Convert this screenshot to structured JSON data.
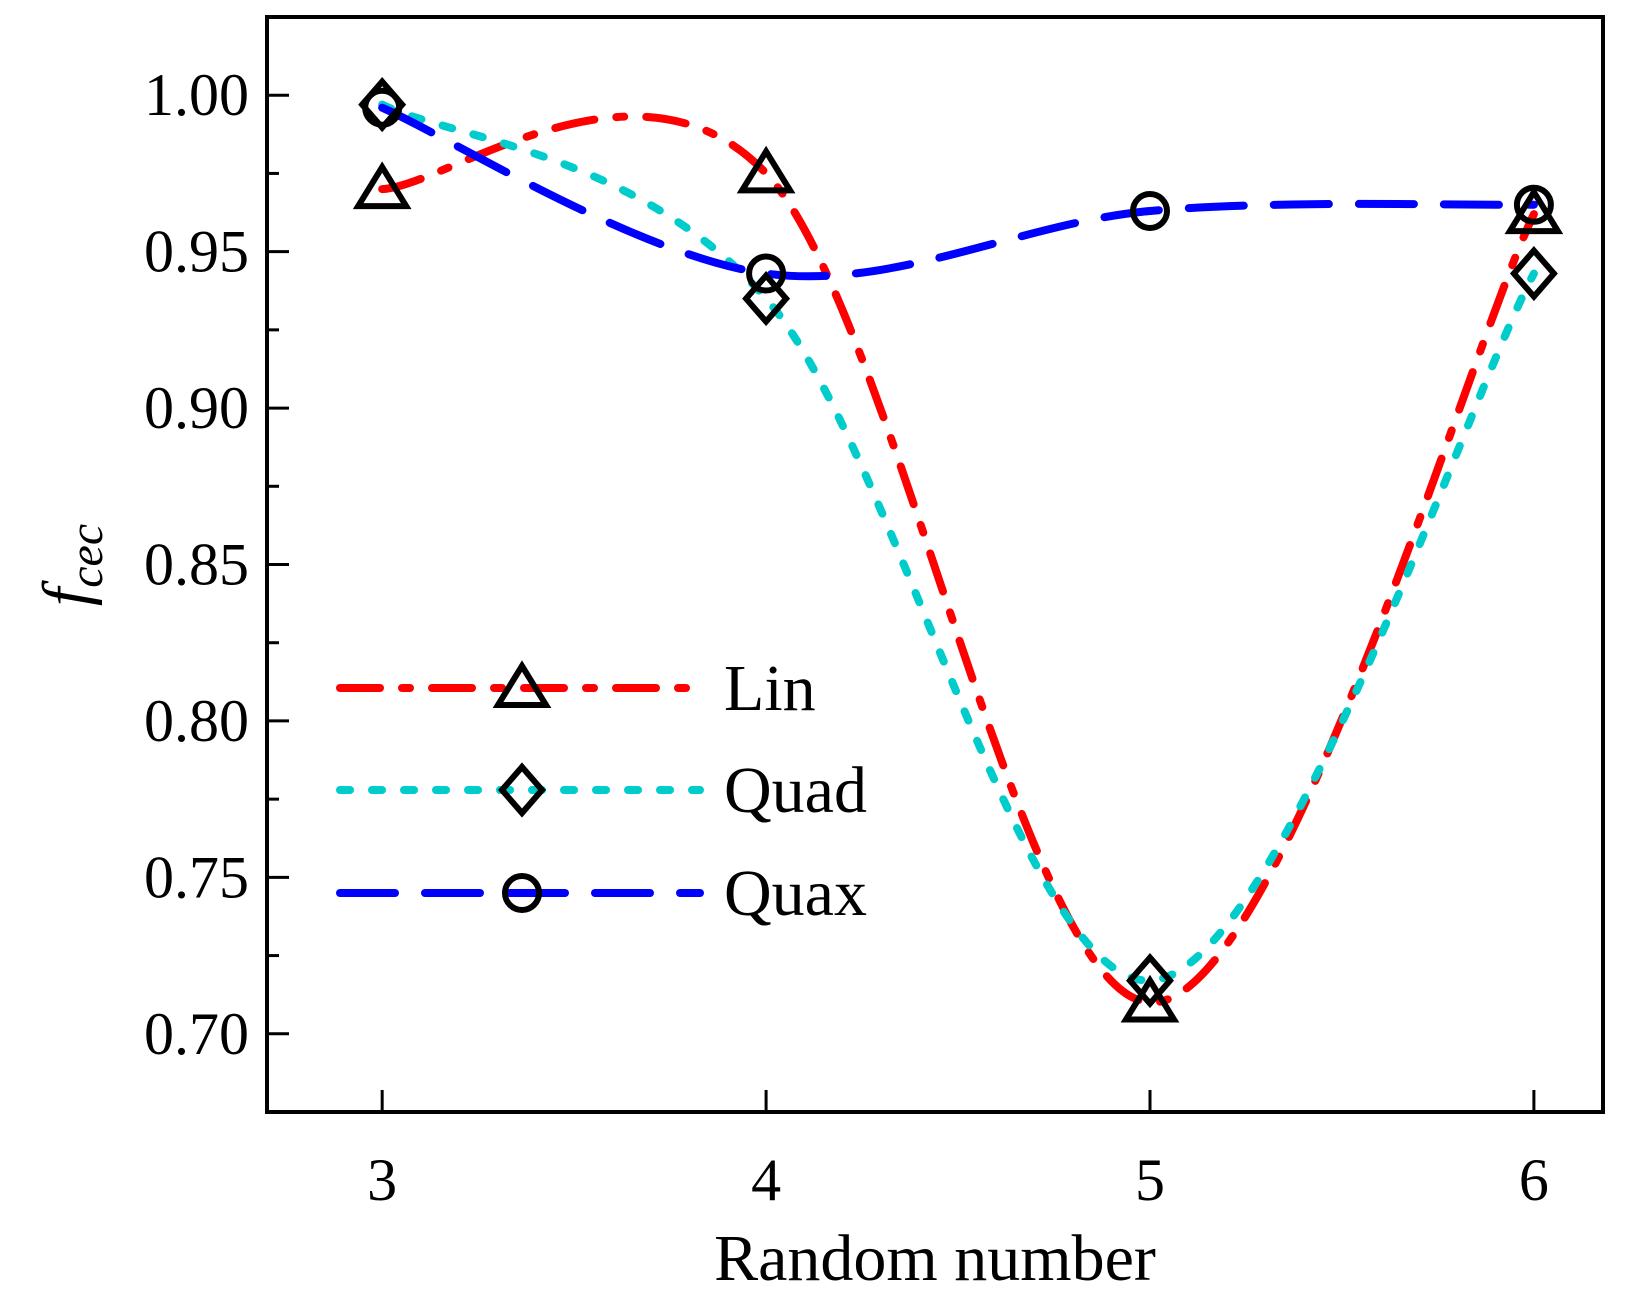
{
  "chart_data": {
    "type": "line",
    "xlabel": "Random number",
    "ylabel_main": "f",
    "ylabel_sub": "cec",
    "x": [
      3,
      4,
      5,
      6
    ],
    "xlim": [
      2.7,
      6.18
    ],
    "ylim": [
      0.675,
      1.025
    ],
    "xticks": [
      3,
      4,
      5,
      6
    ],
    "xtick_labels": [
      "3",
      "4",
      "5",
      "6"
    ],
    "yticks": [
      0.7,
      0.75,
      0.8,
      0.85,
      0.9,
      0.95,
      1.0
    ],
    "ytick_labels": [
      "0.70",
      "0.75",
      "0.80",
      "0.85",
      "0.90",
      "0.95",
      "1.00"
    ],
    "legend_position": "center-left",
    "series": [
      {
        "name": "Lin",
        "color": "#ff0000",
        "marker": "triangle",
        "dash": "dashdot",
        "values": [
          0.97,
          0.975,
          0.71,
          0.962
        ]
      },
      {
        "name": "Quad",
        "color": "#00cccc",
        "marker": "diamond",
        "dash": "dotted",
        "values": [
          0.997,
          0.935,
          0.717,
          0.943
        ]
      },
      {
        "name": "Quax",
        "color": "#0000ff",
        "marker": "circle",
        "dash": "dashed",
        "values": [
          0.996,
          0.943,
          0.963,
          0.965
        ]
      }
    ]
  }
}
